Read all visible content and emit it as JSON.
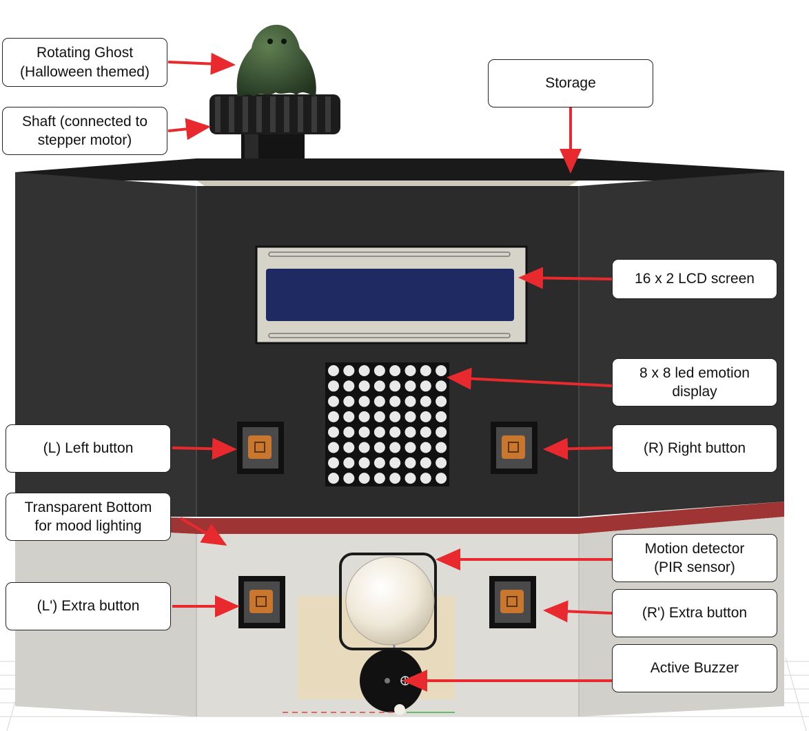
{
  "labels": {
    "ghost": "Rotating Ghost\n(Halloween themed)",
    "shaft": "Shaft (connected to\nstepper motor)",
    "storage": "Storage",
    "lcd": "16 x 2 LCD screen",
    "led_matrix": "8 x 8 led emotion\ndisplay",
    "left_button": "(L) Left button",
    "right_button": "(R) Right button",
    "transparent_bottom": "Transparent Bottom\nfor mood lighting",
    "motion_detector": "Motion detector\n(PIR sensor)",
    "left_extra_button": "(L') Extra button",
    "right_extra_button": "(R') Extra button",
    "buzzer": "Active Buzzer"
  },
  "colors": {
    "arrow": "#e8292e",
    "body_dark": "#2c2c2c",
    "band_red": "#9e3434",
    "bottom_light": "#dcdad5",
    "lcd_screen": "#1f2a63",
    "ghost": "#3d5a3a",
    "led": "#e9e9e9"
  }
}
